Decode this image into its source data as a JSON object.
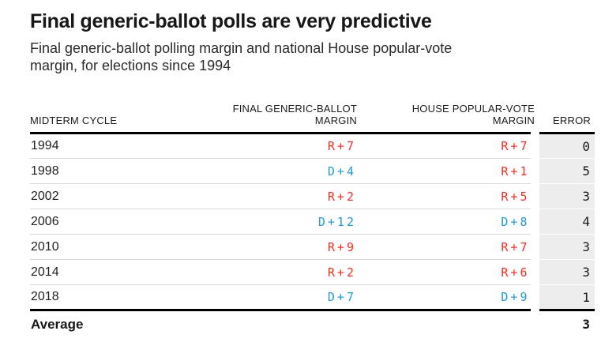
{
  "title": "Final generic-ballot polls are very predictive",
  "subtitle": "Final generic-ballot polling margin and national House popular-vote\nmargin, for elections since 1994",
  "colors": {
    "republican": "#ff2d21",
    "democrat": "#1e9bd8",
    "error_column_background": "#ededed",
    "rule_heavy": "#000000",
    "rule_light": "#d8d8d8"
  },
  "table": {
    "headers": {
      "cycle": "MIDTERM CYCLE",
      "generic": "FINAL GENERIC-BALLOT\nMARGIN",
      "house": "HOUSE POPULAR-VOTE\nMARGIN",
      "error": "ERROR"
    },
    "rows": [
      {
        "cycle": "1994",
        "generic": "R+7",
        "generic_color": "#ff2d21",
        "house": "R+7",
        "house_color": "#ff2d21",
        "error": "0"
      },
      {
        "cycle": "1998",
        "generic": "D+4",
        "generic_color": "#1e9bd8",
        "house": "R+1",
        "house_color": "#ff2d21",
        "error": "5"
      },
      {
        "cycle": "2002",
        "generic": "R+2",
        "generic_color": "#ff2d21",
        "house": "R+5",
        "house_color": "#ff2d21",
        "error": "3"
      },
      {
        "cycle": "2006",
        "generic": "D+12",
        "generic_color": "#1e9bd8",
        "house": "D+8",
        "house_color": "#1e9bd8",
        "error": "4"
      },
      {
        "cycle": "2010",
        "generic": "R+9",
        "generic_color": "#ff2d21",
        "house": "R+7",
        "house_color": "#ff2d21",
        "error": "3"
      },
      {
        "cycle": "2014",
        "generic": "R+2",
        "generic_color": "#ff2d21",
        "house": "R+6",
        "house_color": "#ff2d21",
        "error": "3"
      },
      {
        "cycle": "2018",
        "generic": "D+7",
        "generic_color": "#1e9bd8",
        "house": "D+9",
        "house_color": "#1e9bd8",
        "error": "1"
      }
    ],
    "footer": {
      "label": "Average",
      "error": "3"
    }
  },
  "chart_data": {
    "type": "table",
    "title": "Final generic-ballot polls are very predictive",
    "subtitle": "Final generic-ballot polling margin and national House popular-vote margin, for elections since 1994",
    "columns": [
      "MIDTERM CYCLE",
      "FINAL GENERIC-BALLOT MARGIN",
      "HOUSE POPULAR-VOTE MARGIN",
      "ERROR"
    ],
    "rows": [
      [
        "1994",
        "R+7",
        "R+7",
        0
      ],
      [
        "1998",
        "D+4",
        "R+1",
        5
      ],
      [
        "2002",
        "R+2",
        "R+5",
        3
      ],
      [
        "2006",
        "D+12",
        "D+8",
        4
      ],
      [
        "2010",
        "R+9",
        "R+7",
        3
      ],
      [
        "2014",
        "R+2",
        "R+6",
        3
      ],
      [
        "2018",
        "D+7",
        "D+9",
        1
      ]
    ],
    "footer_row": [
      "Average",
      null,
      null,
      3
    ]
  }
}
